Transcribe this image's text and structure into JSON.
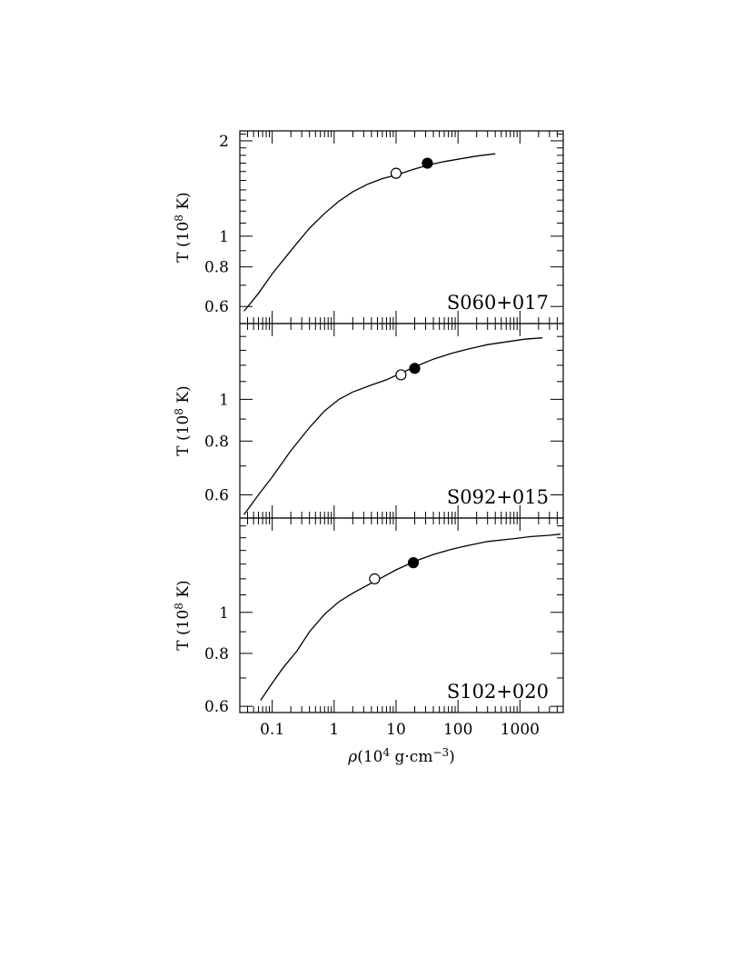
{
  "chart_data": [
    {
      "type": "line",
      "panel_label": "S060+017",
      "xscale": "log",
      "yscale": "log",
      "xlim": [
        0.03,
        5000
      ],
      "ylim": [
        0.53,
        2.15
      ],
      "ylabel_parts": {
        "a": "T (10",
        "sup": "8",
        "b": " K)"
      },
      "yticks_labeled": [
        0.6,
        0.8,
        1,
        2
      ],
      "yticks_labels": [
        "0.6",
        "0.8",
        "1",
        "2"
      ],
      "series": [
        {
          "x": [
            0.035,
            0.06,
            0.1,
            0.15,
            0.25,
            0.4,
            0.7,
            1.2,
            2,
            3.5,
            6,
            10,
            20,
            35,
            60,
            100,
            200,
            400
          ],
          "y": [
            0.58,
            0.66,
            0.76,
            0.84,
            0.95,
            1.06,
            1.18,
            1.29,
            1.38,
            1.46,
            1.52,
            1.56,
            1.63,
            1.68,
            1.72,
            1.75,
            1.79,
            1.82
          ]
        }
      ],
      "markers": [
        {
          "style": "open",
          "x": 10,
          "y": 1.58
        },
        {
          "style": "filled",
          "x": 32,
          "y": 1.7
        }
      ]
    },
    {
      "type": "line",
      "panel_label": "S092+015",
      "xscale": "log",
      "yscale": "log",
      "xlim": [
        0.03,
        5000
      ],
      "ylim": [
        0.53,
        1.5
      ],
      "ylabel_parts": {
        "a": "T (10",
        "sup": "8",
        "b": " K)"
      },
      "yticks_labeled": [
        0.6,
        0.8,
        1
      ],
      "yticks_labels": [
        "0.6",
        "0.8",
        "1"
      ],
      "series": [
        {
          "x": [
            0.035,
            0.06,
            0.1,
            0.2,
            0.4,
            0.7,
            1.2,
            2,
            4,
            7,
            12,
            20,
            40,
            80,
            150,
            300,
            600,
            1200,
            2300
          ],
          "y": [
            0.54,
            0.6,
            0.66,
            0.76,
            0.86,
            0.94,
            1.0,
            1.04,
            1.08,
            1.11,
            1.15,
            1.19,
            1.24,
            1.28,
            1.31,
            1.34,
            1.36,
            1.38,
            1.39
          ]
        }
      ],
      "markers": [
        {
          "style": "open",
          "x": 12,
          "y": 1.14
        },
        {
          "style": "filled",
          "x": 20,
          "y": 1.18
        }
      ]
    },
    {
      "type": "line",
      "panel_label": "S102+020",
      "xscale": "log",
      "yscale": "log",
      "xlim": [
        0.03,
        5000
      ],
      "ylim": [
        0.58,
        1.67
      ],
      "ylabel_parts": {
        "a": "T (10",
        "sup": "8",
        "b": " K)"
      },
      "xlabel_parts": {
        "rho": "ρ",
        "a": "(10",
        "sup1": "4",
        "b": " g·cm",
        "sup2": "−3",
        "c": ")"
      },
      "xticks_labeled": [
        0.1,
        1,
        10,
        100,
        1000
      ],
      "xticks_labels": [
        "0.1",
        "1",
        "10",
        "100",
        "1000"
      ],
      "yticks_labeled": [
        0.6,
        0.8,
        1
      ],
      "yticks_labels": [
        "0.6",
        "0.8",
        "1"
      ],
      "series": [
        {
          "x": [
            0.065,
            0.1,
            0.15,
            0.25,
            0.4,
            0.7,
            1.2,
            2,
            3.5,
            6,
            10,
            20,
            40,
            80,
            150,
            300,
            700,
            1500,
            3000,
            4500
          ],
          "y": [
            0.62,
            0.68,
            0.74,
            0.81,
            0.9,
            0.99,
            1.06,
            1.11,
            1.16,
            1.21,
            1.26,
            1.32,
            1.37,
            1.41,
            1.44,
            1.47,
            1.49,
            1.51,
            1.52,
            1.53
          ]
        }
      ],
      "markers": [
        {
          "style": "open",
          "x": 4.5,
          "y": 1.2
        },
        {
          "style": "filled",
          "x": 19,
          "y": 1.31
        }
      ]
    }
  ]
}
